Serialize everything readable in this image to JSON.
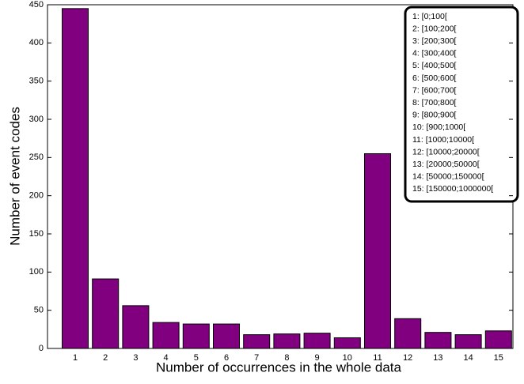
{
  "chart_data": {
    "type": "bar",
    "xlabel": "Number of occurrences in the whole data",
    "ylabel": "Number of event codes",
    "categories": [
      "1",
      "2",
      "3",
      "4",
      "5",
      "6",
      "7",
      "8",
      "9",
      "10",
      "11",
      "12",
      "13",
      "14",
      "15"
    ],
    "values": [
      445,
      91,
      56,
      34,
      32,
      32,
      18,
      19,
      20,
      14,
      255,
      39,
      21,
      18,
      23
    ],
    "color": "#800080",
    "ylim": [
      0,
      450
    ],
    "yticks": [
      0,
      50,
      100,
      150,
      200,
      250,
      300,
      350,
      400,
      450
    ],
    "annotation": [
      "1: [0;100[",
      "2: [100;200[",
      "3: [200;300[",
      "4: [300;400[",
      "5: [400;500[",
      "6: [500;600[",
      "7: [600;700[",
      "8: [700;800[",
      "9: [800;900[",
      "10: [900;1000[",
      "11: [1000;10000[",
      "12: [10000;20000[",
      "13: [20000;50000[",
      "14: [50000;150000[",
      "15: [150000;1000000["
    ]
  }
}
